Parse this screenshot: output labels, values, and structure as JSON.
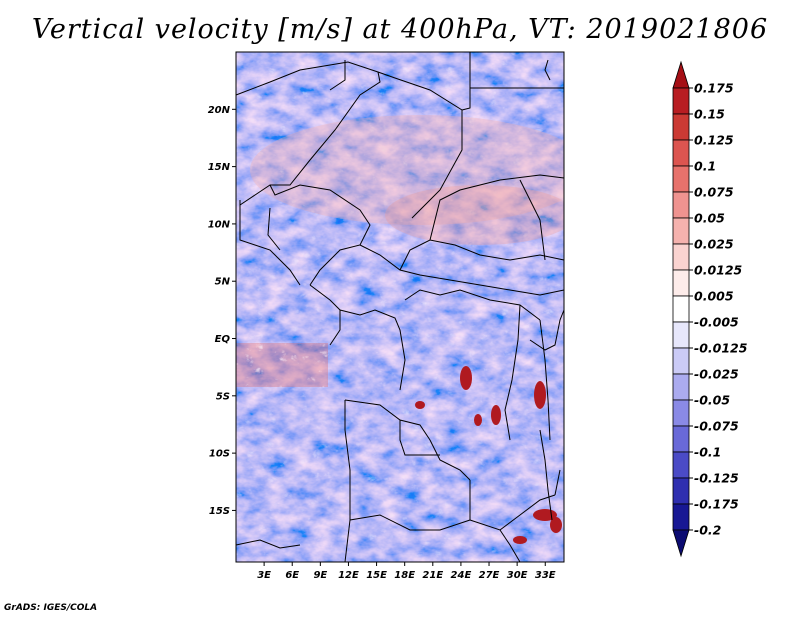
{
  "title": "Vertical velocity [m/s] at 400hPa, VT: 2019021806",
  "footer": "GrADS: IGES/COLA",
  "map": {
    "lat_labels": [
      "20N",
      "15N",
      "10N",
      "5N",
      "EQ",
      "5S",
      "10S",
      "15S"
    ],
    "lat_values": [
      20,
      15,
      10,
      5,
      0,
      -5,
      -10,
      -15
    ],
    "lon_labels": [
      "3E",
      "6E",
      "9E",
      "12E",
      "15E",
      "18E",
      "21E",
      "24E",
      "27E",
      "30E",
      "33E"
    ],
    "lon_values": [
      3,
      6,
      9,
      12,
      15,
      18,
      21,
      24,
      27,
      30,
      33
    ],
    "lon_range": [
      0,
      35
    ],
    "lat_range": [
      -19.5,
      25
    ]
  },
  "colorbar": {
    "labels": [
      "0.175",
      "0.15",
      "0.125",
      "0.1",
      "0.075",
      "0.05",
      "0.025",
      "0.0125",
      "0.005",
      "-0.005",
      "-0.0125",
      "-0.025",
      "-0.05",
      "-0.075",
      "-0.1",
      "-0.125",
      "-0.175",
      "-0.2"
    ],
    "colors": [
      "#a50f15",
      "#b81d22",
      "#cb3a34",
      "#dc5550",
      "#e7726c",
      "#ef9390",
      "#f5b2ae",
      "#fad3d0",
      "#fdecea",
      "#ffffff",
      "#e7e7fb",
      "#cbcbf6",
      "#ababef",
      "#8a8ae6",
      "#6969d8",
      "#4b4bc6",
      "#2f2fb0",
      "#181894",
      "#0c0c72"
    ]
  }
}
